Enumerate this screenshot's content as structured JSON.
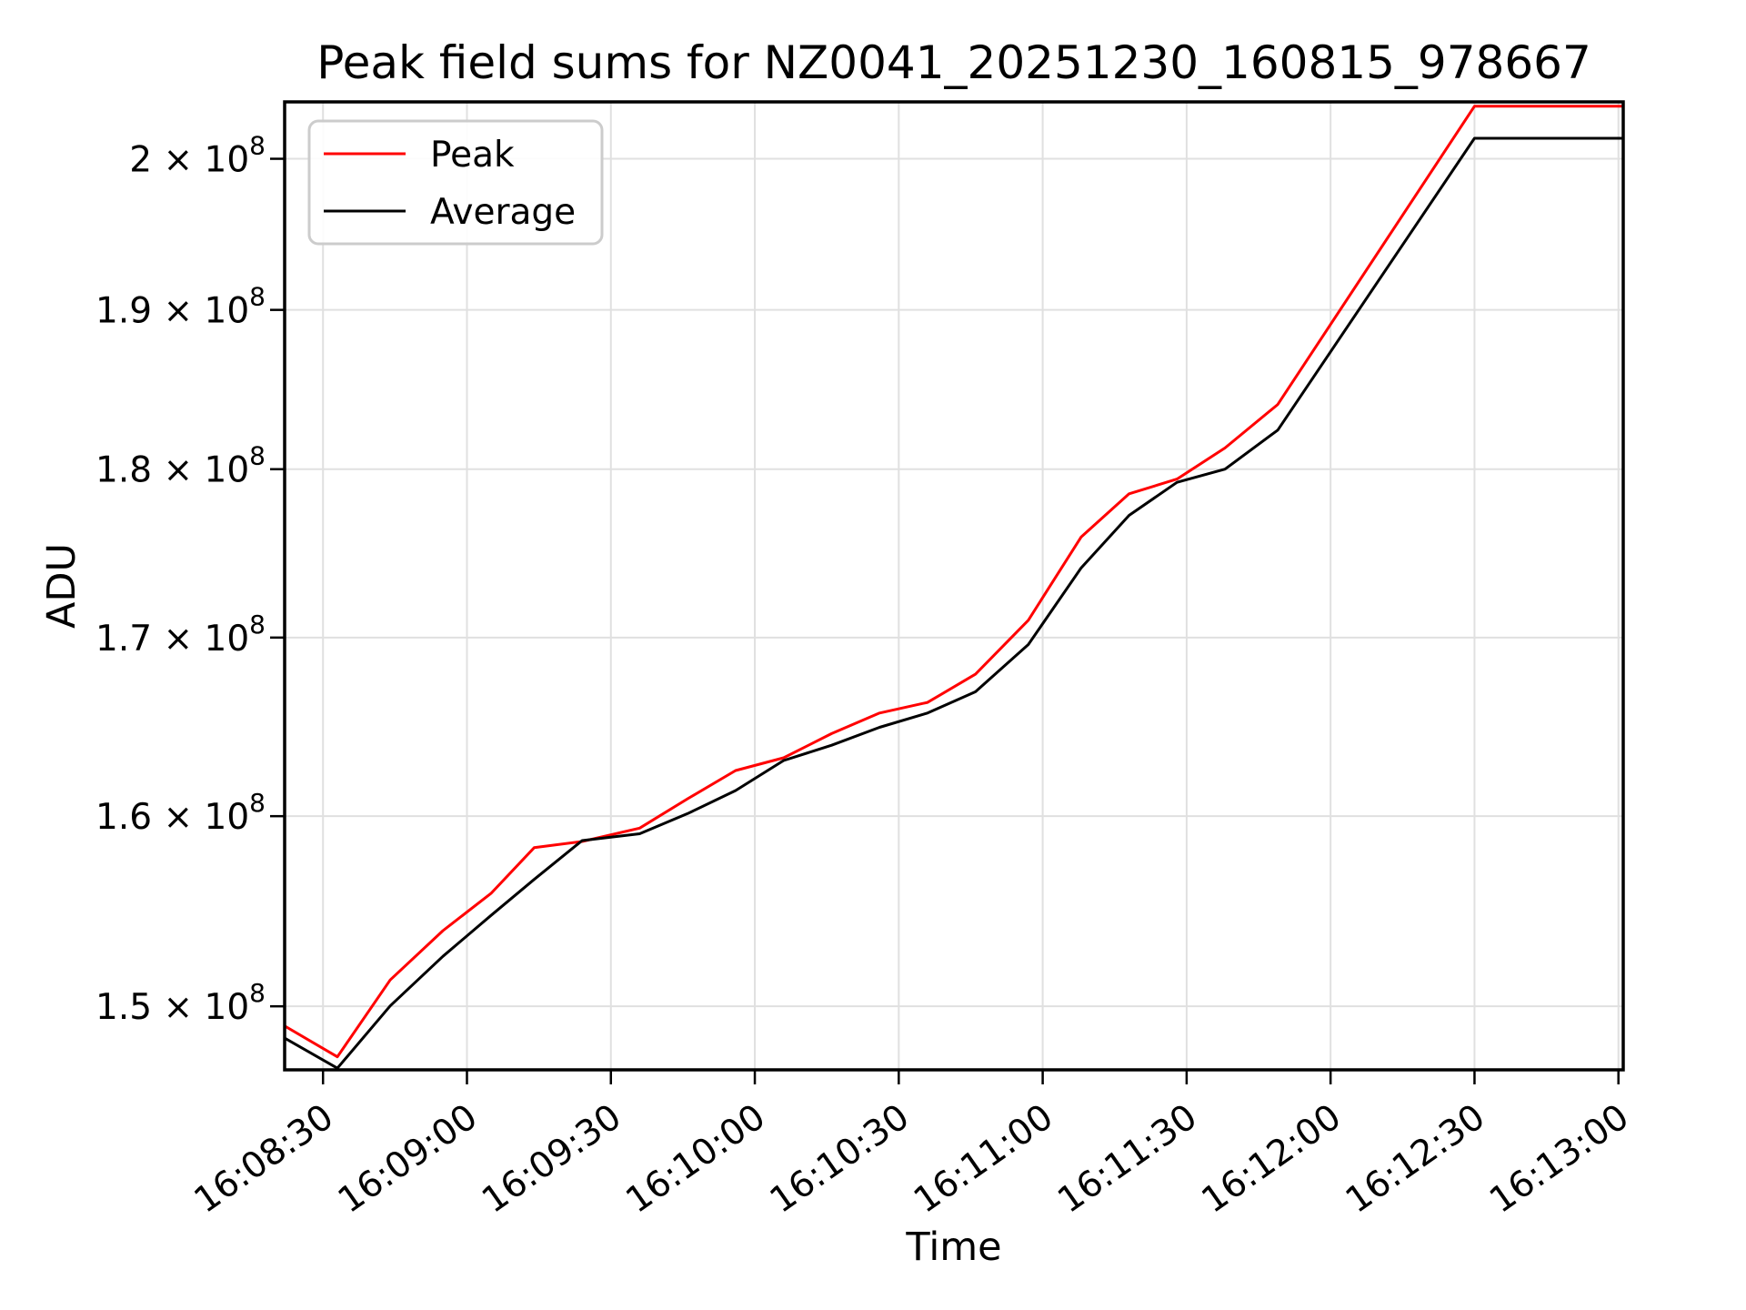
{
  "figure": {
    "background": "#ffffff",
    "frame_color": "#000000",
    "grid_color": "#e0e0e0",
    "legend_border_color": "#cccccc"
  },
  "chart_data": {
    "type": "line",
    "title": "Peak field sums for NZ0041_20251230_160815_978667",
    "xlabel": "Time",
    "ylabel": "ADU",
    "yscale": "log",
    "grid": true,
    "legend_position": "upper left",
    "x_base_time": "16:08:00",
    "xlim_seconds": [
      22,
      301
    ],
    "ylim": [
      146800000.0,
      203900000.0
    ],
    "x_ticks": [
      {
        "seconds": 30,
        "label": "16:08:30"
      },
      {
        "seconds": 60,
        "label": "16:09:00"
      },
      {
        "seconds": 90,
        "label": "16:09:30"
      },
      {
        "seconds": 120,
        "label": "16:10:00"
      },
      {
        "seconds": 150,
        "label": "16:10:30"
      },
      {
        "seconds": 180,
        "label": "16:11:00"
      },
      {
        "seconds": 210,
        "label": "16:11:30"
      },
      {
        "seconds": 240,
        "label": "16:12:00"
      },
      {
        "seconds": 270,
        "label": "16:12:30"
      },
      {
        "seconds": 300,
        "label": "16:13:00"
      }
    ],
    "y_ticks": [
      {
        "value": 150000000.0,
        "mantissa": "1.5",
        "exponent": "8"
      },
      {
        "value": 160000000.0,
        "mantissa": "1.6",
        "exponent": "8"
      },
      {
        "value": 170000000.0,
        "mantissa": "1.7",
        "exponent": "8"
      },
      {
        "value": 180000000.0,
        "mantissa": "1.8",
        "exponent": "8"
      },
      {
        "value": 190000000.0,
        "mantissa": "1.9",
        "exponent": "8"
      },
      {
        "value": 200000000.0,
        "mantissa": "2",
        "exponent": "8"
      }
    ],
    "legend": {
      "entries": [
        {
          "label": "Peak",
          "color": "#ff0000"
        },
        {
          "label": "Average",
          "color": "#000000"
        }
      ]
    },
    "series": [
      {
        "name": "Peak",
        "color": "#ff0000",
        "points": [
          [
            22,
            149000000.0
          ],
          [
            33,
            147450000.0
          ],
          [
            44,
            151350000.0
          ],
          [
            55,
            153900000.0
          ],
          [
            65,
            155860000.0
          ],
          [
            74,
            158300000.0
          ],
          [
            84,
            158630000.0
          ],
          [
            96,
            159350000.0
          ],
          [
            106,
            160950000.0
          ],
          [
            116,
            162500000.0
          ],
          [
            126,
            163200000.0
          ],
          [
            136,
            164550000.0
          ],
          [
            146,
            165700000.0
          ],
          [
            156,
            166300000.0
          ],
          [
            166,
            167900000.0
          ],
          [
            177,
            171000000.0
          ],
          [
            188,
            175900000.0
          ],
          [
            198,
            178500000.0
          ],
          [
            208,
            179400000.0
          ],
          [
            218,
            181300000.0
          ],
          [
            229,
            184000000.0
          ],
          [
            270,
            203600000.0
          ],
          [
            301,
            203600000.0
          ]
        ]
      },
      {
        "name": "Average",
        "color": "#000000",
        "points": [
          [
            22,
            148390000.0
          ],
          [
            33,
            146880000.0
          ],
          [
            44,
            150020000.0
          ],
          [
            55,
            152570000.0
          ],
          [
            65,
            154700000.0
          ],
          [
            74,
            156600000.0
          ],
          [
            84,
            158680000.0
          ],
          [
            96,
            159050000.0
          ],
          [
            106,
            160140000.0
          ],
          [
            116,
            161400000.0
          ],
          [
            126,
            163050000.0
          ],
          [
            136,
            163900000.0
          ],
          [
            146,
            164900000.0
          ],
          [
            156,
            165700000.0
          ],
          [
            166,
            166900000.0
          ],
          [
            177,
            169600000.0
          ],
          [
            188,
            174060000.0
          ],
          [
            198,
            177200000.0
          ],
          [
            208,
            179200000.0
          ],
          [
            218,
            180000000.0
          ],
          [
            229,
            182400000.0
          ],
          [
            270,
            201400000.0
          ],
          [
            301,
            201400000.0
          ]
        ]
      }
    ]
  }
}
